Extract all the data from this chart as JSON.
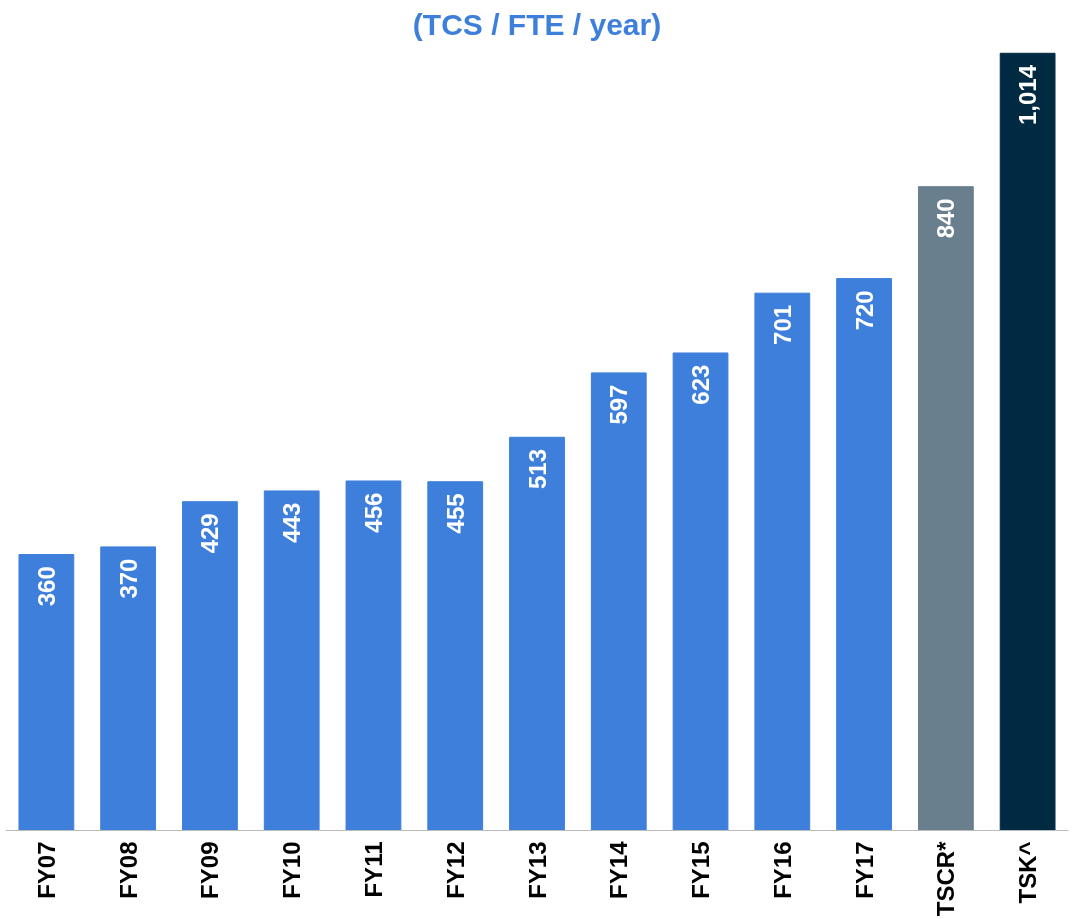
{
  "chart_data": {
    "type": "bar",
    "title": "(TCS / FTE / year)",
    "categories": [
      "FY07",
      "FY08",
      "FY09",
      "FY10",
      "FY11",
      "FY12",
      "FY13",
      "FY14",
      "FY15",
      "FY16",
      "FY17",
      "TSCR*",
      "TSK^"
    ],
    "values": [
      360,
      370,
      429,
      443,
      456,
      455,
      513,
      597,
      623,
      701,
      720,
      840,
      1014
    ],
    "value_labels": [
      "360",
      "370",
      "429",
      "443",
      "456",
      "455",
      "513",
      "597",
      "623",
      "701",
      "720",
      "840",
      "1,014"
    ],
    "colors": [
      "#3d7fdb",
      "#3d7fdb",
      "#3d7fdb",
      "#3d7fdb",
      "#3d7fdb",
      "#3d7fdb",
      "#3d7fdb",
      "#3d7fdb",
      "#3d7fdb",
      "#3d7fdb",
      "#3d7fdb",
      "#697f8e",
      "#002a42"
    ],
    "grid": false
  }
}
